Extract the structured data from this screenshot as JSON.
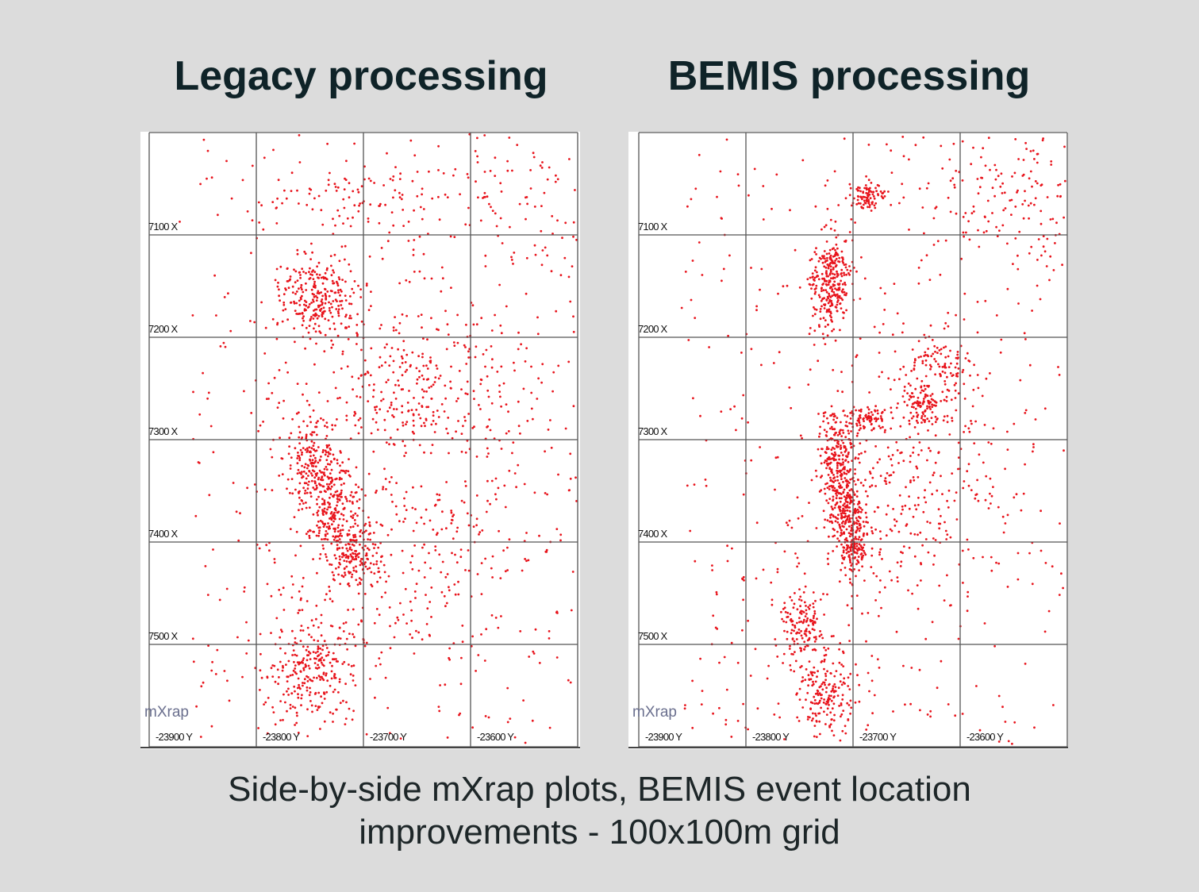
{
  "titles": {
    "left": "Legacy processing",
    "right": "BEMIS processing"
  },
  "caption": {
    "line1": "Side-by-side mXrap plots, BEMIS event location",
    "line2": "improvements - 100x100m grid"
  },
  "chart_data": [
    {
      "type": "scatter",
      "title": "Legacy processing",
      "watermark": "mXrap",
      "point_color": "#e8141c",
      "grid": true,
      "x_axis": {
        "quantity": "Y",
        "range": [
          -23900,
          -23500
        ],
        "ticks": [
          -23900,
          -23800,
          -23700,
          -23600
        ],
        "tick_labels": [
          "-23900 Y",
          "-23800 Y",
          "-23700 Y",
          "-23600 Y"
        ]
      },
      "y_axis": {
        "quantity": "X",
        "range": [
          7000,
          7600
        ],
        "inverted": true,
        "ticks": [
          7100,
          7200,
          7300,
          7400,
          7500
        ],
        "tick_labels": [
          "7100 X",
          "7200 X",
          "7300 X",
          "7400 X",
          "7500 X"
        ]
      },
      "point_clusters": [
        {
          "y": -23743,
          "x": 7161,
          "sd_y": 18,
          "sd_x": 20,
          "n": 260
        },
        {
          "y": -23747,
          "x": 7320,
          "sd_y": 14,
          "sd_x": 22,
          "n": 200
        },
        {
          "y": -23728,
          "x": 7367,
          "sd_y": 14,
          "sd_x": 20,
          "n": 200
        },
        {
          "y": -23712,
          "x": 7413,
          "sd_y": 12,
          "sd_x": 16,
          "n": 160
        },
        {
          "y": -23747,
          "x": 7522,
          "sd_y": 22,
          "sd_x": 25,
          "n": 260
        },
        {
          "y": -23647,
          "x": 7243,
          "sd_y": 55,
          "sd_x": 45,
          "n": 320
        },
        {
          "y": -23706,
          "x": 7068,
          "sd_y": 55,
          "sd_x": 15,
          "n": 90
        },
        {
          "y": -23565,
          "x": 7057,
          "sd_y": 45,
          "sd_x": 35,
          "n": 80
        },
        {
          "y": -23654,
          "x": 7413,
          "sd_y": 60,
          "sd_x": 60,
          "n": 220
        },
        {
          "y_range": [
            -23860,
            -23500
          ],
          "x_range": [
            7000,
            7600
          ],
          "n": 450
        }
      ]
    },
    {
      "type": "scatter",
      "title": "BEMIS processing",
      "watermark": "mXrap",
      "point_color": "#e8141c",
      "grid": true,
      "x_axis": {
        "quantity": "Y",
        "range": [
          -23900,
          -23500
        ],
        "ticks": [
          -23900,
          -23800,
          -23700,
          -23600
        ],
        "tick_labels": [
          "-23900 Y",
          "-23800 Y",
          "-23700 Y",
          "-23600 Y"
        ]
      },
      "y_axis": {
        "quantity": "X",
        "range": [
          7000,
          7600
        ],
        "inverted": true,
        "ticks": [
          7100,
          7200,
          7300,
          7400,
          7500
        ],
        "tick_labels": [
          "7100 X",
          "7200 X",
          "7300 X",
          "7400 X",
          "7500 X"
        ]
      },
      "point_clusters": [
        {
          "y": -23687,
          "x": 7062,
          "sd_y": 8,
          "sd_x": 7,
          "n": 90
        },
        {
          "y": -23722,
          "x": 7146,
          "sd_y": 9,
          "sd_x": 24,
          "n": 300
        },
        {
          "y": -23715,
          "x": 7320,
          "sd_y": 8,
          "sd_x": 22,
          "n": 200
        },
        {
          "y": -23707,
          "x": 7367,
          "sd_y": 8,
          "sd_x": 20,
          "n": 200
        },
        {
          "y": -23698,
          "x": 7400,
          "sd_y": 7,
          "sd_x": 16,
          "n": 140
        },
        {
          "y": -23689,
          "x": 7281,
          "sd_y": 14,
          "sd_x": 6,
          "n": 90
        },
        {
          "y": -23633,
          "x": 7266,
          "sd_y": 9,
          "sd_x": 8,
          "n": 100
        },
        {
          "y": -23622,
          "x": 7227,
          "sd_y": 22,
          "sd_x": 16,
          "n": 110
        },
        {
          "y": -23748,
          "x": 7480,
          "sd_y": 10,
          "sd_x": 20,
          "n": 150
        },
        {
          "y": -23725,
          "x": 7545,
          "sd_y": 12,
          "sd_x": 22,
          "n": 180
        },
        {
          "y": -23644,
          "x": 7351,
          "sd_y": 50,
          "sd_x": 50,
          "n": 300
        },
        {
          "y": -23548,
          "x": 7057,
          "sd_y": 45,
          "sd_x": 40,
          "n": 150
        },
        {
          "y_range": [
            -23860,
            -23500
          ],
          "x_range": [
            7000,
            7600
          ],
          "n": 420
        }
      ]
    }
  ]
}
